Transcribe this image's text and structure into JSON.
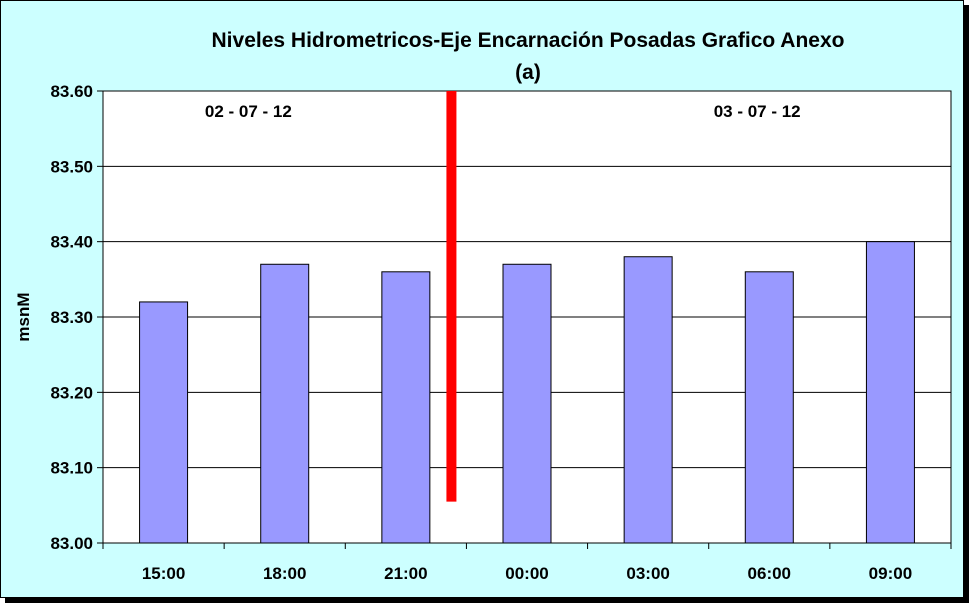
{
  "chart_data": {
    "type": "bar",
    "title": "Niveles Hidrometricos-Eje Encarnación Posadas Grafico Anexo",
    "subtitle": "(a)",
    "ylabel": "msnM",
    "xlabel": "",
    "categories": [
      "15:00",
      "18:00",
      "21:00",
      "00:00",
      "03:00",
      "06:00",
      "09:00"
    ],
    "values": [
      83.32,
      83.37,
      83.36,
      83.37,
      83.38,
      83.36,
      83.4
    ],
    "ylim": [
      83.0,
      83.6
    ],
    "yticks": [
      "83.00",
      "83.10",
      "83.20",
      "83.30",
      "83.40",
      "83.50",
      "83.60"
    ],
    "grid": true,
    "bar_color": "#9999ff",
    "background_color": "#ccffff",
    "date_labels": [
      "02 - 07 - 12",
      "03 - 07 - 12"
    ],
    "divider": {
      "color": "#ff0000",
      "between_categories": [
        "21:00",
        "00:00"
      ],
      "from_value": 83.6,
      "to_value": 83.055
    }
  }
}
